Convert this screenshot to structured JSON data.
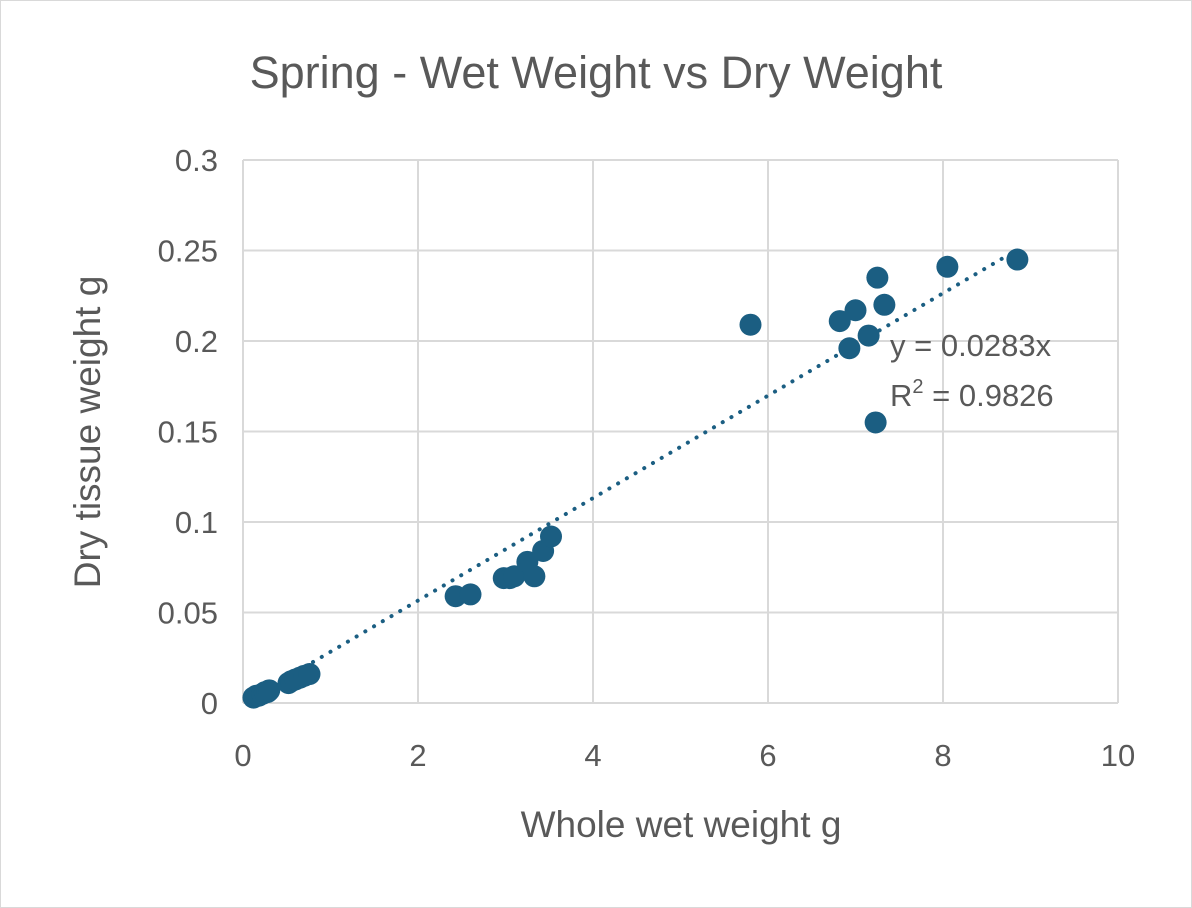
{
  "chart_data": {
    "type": "scatter",
    "title": "Spring - Wet Weight vs Dry Weight",
    "xlabel": "Whole wet weight g",
    "ylabel": "Dry tissue weight g",
    "xlim": [
      0,
      10
    ],
    "ylim": [
      0,
      0.3
    ],
    "x_ticks": [
      "0",
      "2",
      "4",
      "6",
      "8",
      "10"
    ],
    "y_ticks": [
      "0",
      "0.05",
      "0.1",
      "0.15",
      "0.2",
      "0.25",
      "0.3"
    ],
    "grid": true,
    "legend": "none",
    "marker_color": "#1b5e82",
    "series": [
      {
        "name": "Spring",
        "points": [
          [
            0.12,
            0.003
          ],
          [
            0.15,
            0.004
          ],
          [
            0.18,
            0.004
          ],
          [
            0.22,
            0.005
          ],
          [
            0.25,
            0.006
          ],
          [
            0.28,
            0.006
          ],
          [
            0.3,
            0.007
          ],
          [
            0.52,
            0.011
          ],
          [
            0.55,
            0.012
          ],
          [
            0.6,
            0.013
          ],
          [
            0.65,
            0.014
          ],
          [
            0.7,
            0.015
          ],
          [
            0.76,
            0.016
          ],
          [
            2.43,
            0.059
          ],
          [
            2.6,
            0.06
          ],
          [
            2.98,
            0.069
          ],
          [
            3.05,
            0.069
          ],
          [
            3.1,
            0.07
          ],
          [
            3.25,
            0.078
          ],
          [
            3.33,
            0.07
          ],
          [
            3.43,
            0.084
          ],
          [
            3.52,
            0.092
          ],
          [
            5.8,
            0.209
          ],
          [
            6.82,
            0.211
          ],
          [
            6.93,
            0.196
          ],
          [
            7.0,
            0.217
          ],
          [
            7.15,
            0.203
          ],
          [
            7.25,
            0.235
          ],
          [
            7.33,
            0.22
          ],
          [
            7.23,
            0.155
          ],
          [
            8.05,
            0.241
          ],
          [
            8.85,
            0.245
          ]
        ]
      }
    ],
    "trendline": {
      "type": "linear",
      "slope": 0.0283,
      "x_range": [
        0.8,
        8.85
      ],
      "equation": "y = 0.0283x",
      "r2_label": "R",
      "r2_sup": "2",
      "r2_value": " = 0.9826"
    }
  }
}
